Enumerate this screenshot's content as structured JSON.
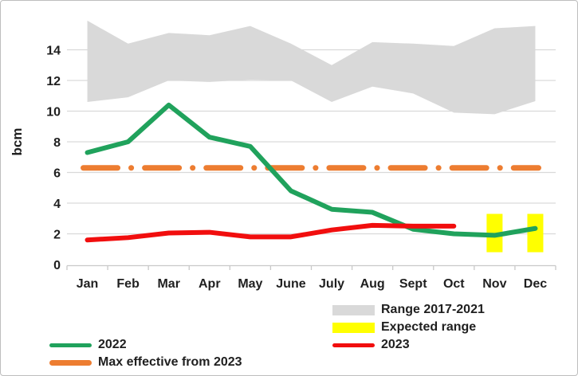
{
  "chart_data": {
    "type": "line",
    "title": "",
    "ylabel": "bcm",
    "ylim": [
      0,
      16
    ],
    "yticks": [
      0,
      2,
      4,
      6,
      8,
      10,
      12,
      14
    ],
    "grid": true,
    "legend_position": "bottom",
    "categories": [
      "Jan",
      "Feb",
      "Mar",
      "Apr",
      "May",
      "June",
      "July",
      "Aug",
      "Sept",
      "Oct",
      "Nov",
      "Dec"
    ],
    "series": [
      {
        "name": "Range 2017-2021",
        "type": "band",
        "color": "#d9d9d9",
        "lower": [
          10.6,
          10.9,
          12.0,
          11.9,
          12.05,
          12.0,
          10.6,
          11.6,
          11.15,
          9.9,
          9.8,
          10.65
        ],
        "upper": [
          15.9,
          14.4,
          15.1,
          14.95,
          15.55,
          14.4,
          13.0,
          14.5,
          14.4,
          14.25,
          15.4,
          15.55
        ]
      },
      {
        "name": "Expected range",
        "type": "bar",
        "color": "#ffff00",
        "months": [
          "Nov",
          "Dec"
        ],
        "low": 0.8,
        "high": 3.3
      },
      {
        "name": "Max effective from 2023",
        "type": "dashdot-line",
        "color": "#ed7d31",
        "value": 6.3
      },
      {
        "name": "2022",
        "type": "line",
        "color": "#20a25c",
        "values": [
          7.3,
          8.0,
          10.4,
          8.3,
          7.7,
          4.8,
          3.6,
          3.4,
          2.3,
          2.0,
          1.9,
          2.35
        ]
      },
      {
        "name": "2023",
        "type": "line",
        "color": "#f10e0e",
        "values": [
          1.6,
          1.75,
          2.05,
          2.1,
          1.8,
          1.8,
          2.25,
          2.55,
          2.5,
          2.5
        ]
      }
    ],
    "legend": {
      "left": [
        {
          "label": "2022",
          "color": "#20a25c",
          "swatch": "line"
        },
        {
          "label": "Max effective from 2023",
          "color": "#ed7d31",
          "swatch": "line-thick"
        }
      ],
      "right": [
        {
          "label": "Range 2017-2021",
          "color": "#d9d9d9",
          "swatch": "rect"
        },
        {
          "label": "Expected range",
          "color": "#ffff00",
          "swatch": "rect"
        },
        {
          "label": "2023",
          "color": "#f10e0e",
          "swatch": "line"
        }
      ]
    }
  }
}
